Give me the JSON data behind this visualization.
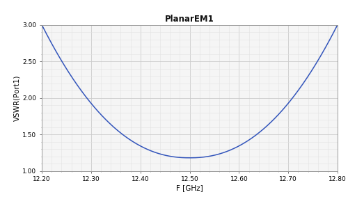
{
  "title": "PlanarEM1",
  "xlabel": "F [GHz]",
  "ylabel": "VSWR(Port1)",
  "xlim": [
    12.2,
    12.8
  ],
  "ylim": [
    1.0,
    3.0
  ],
  "xticks": [
    12.2,
    12.3,
    12.4,
    12.5,
    12.6,
    12.7,
    12.8
  ],
  "yticks": [
    1.0,
    1.5,
    2.0,
    2.5,
    3.0
  ],
  "line_color": "#3355bb",
  "line_width": 1.1,
  "plot_bg_color": "#f5f5f5",
  "fig_bg_color": "#ffffff",
  "grid_major_color": "#cccccc",
  "grid_minor_color": "#e2e2e2",
  "x_center": 12.5,
  "y_at_center": 1.18,
  "curve_power": 2.2,
  "curve_scale": 0.28
}
